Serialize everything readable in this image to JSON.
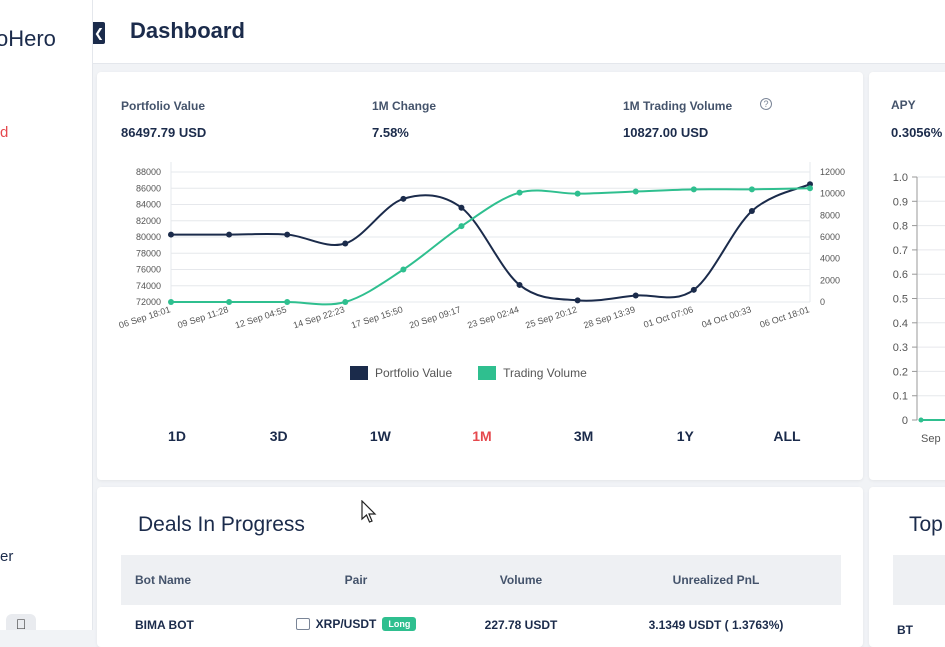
{
  "sidebar": {
    "brand_partial": "oHero",
    "item_red_partial": "d",
    "item_partial": "er",
    "apple_glyph": ""
  },
  "header": {
    "collapse_glyph": "❮",
    "title": "Dashboard"
  },
  "stats": {
    "portfolio_label": "Portfolio Value",
    "portfolio_value": "86497.79 USD",
    "change_label": "1M Change",
    "change_value": "7.58%",
    "volume_label": "1M Trading Volume",
    "volume_value": "10827.00 USD",
    "help_glyph": "?"
  },
  "apy": {
    "label": "APY",
    "value": "0.3056%",
    "ticks": [
      "1.0",
      "0.9",
      "0.8",
      "0.7",
      "0.6",
      "0.5",
      "0.4",
      "0.3",
      "0.2",
      "0.1",
      "0"
    ],
    "x_label_partial": "Sep"
  },
  "chart_data": {
    "type": "line",
    "x": [
      "06 Sep 18:01",
      "09 Sep 11:28",
      "12 Sep 04:55",
      "14 Sep 22:23",
      "17 Sep 15:50",
      "20 Sep 09:17",
      "23 Sep 02:44",
      "25 Sep 20:12",
      "28 Sep 13:39",
      "01 Oct 07:06",
      "04 Oct 00:33",
      "06 Oct 18:01"
    ],
    "series": [
      {
        "name": "Portfolio Value",
        "axis": "left",
        "color": "#1b2b4b",
        "values": [
          80300,
          80300,
          80300,
          79200,
          84700,
          83600,
          74100,
          72200,
          72800,
          73500,
          83200,
          86500
        ]
      },
      {
        "name": "Trading Volume",
        "axis": "right",
        "color": "#2fbf8f",
        "values": [
          0,
          0,
          0,
          0,
          3000,
          7000,
          10100,
          10000,
          10200,
          10400,
          10400,
          10500
        ]
      }
    ],
    "y_left": {
      "min": 72000,
      "max": 88000,
      "ticks": [
        "88000",
        "86000",
        "84000",
        "82000",
        "80000",
        "78000",
        "76000",
        "74000",
        "72000"
      ]
    },
    "y_right": {
      "min": 0,
      "max": 12000,
      "ticks": [
        "12000",
        "10000",
        "8000",
        "6000",
        "4000",
        "2000",
        "0"
      ]
    },
    "legend": [
      "Portfolio Value",
      "Trading Volume"
    ]
  },
  "ranges": [
    {
      "label": "1D",
      "active": false
    },
    {
      "label": "3D",
      "active": false
    },
    {
      "label": "1W",
      "active": false
    },
    {
      "label": "1M",
      "active": true
    },
    {
      "label": "3M",
      "active": false
    },
    {
      "label": "1Y",
      "active": false
    },
    {
      "label": "ALL",
      "active": false
    }
  ],
  "deals": {
    "title": "Deals In Progress",
    "columns": [
      "Bot Name",
      "Pair",
      "Volume",
      "Unrealized PnL"
    ],
    "rows": [
      {
        "bot": "BIMA BOT",
        "pair": "XRP/USDT",
        "badge": "Long",
        "volume": "227.78 USDT",
        "pnl": "3.1349 USDT ( 1.3763%)"
      }
    ]
  },
  "top": {
    "title_partial": "Top",
    "cell_partial": "BT"
  }
}
